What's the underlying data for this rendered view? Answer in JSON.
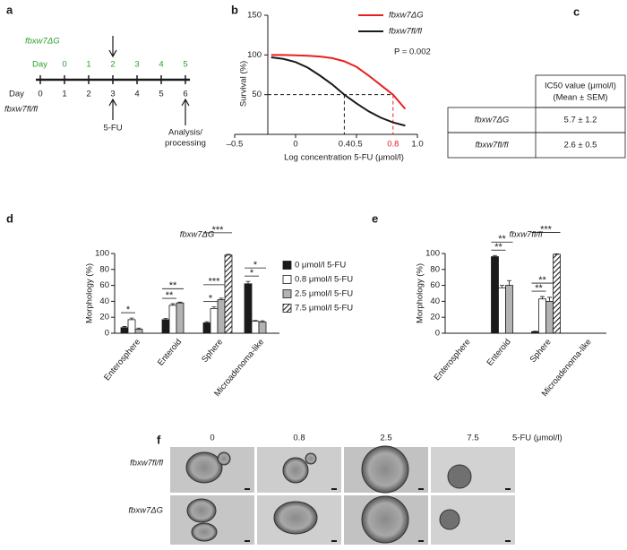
{
  "panel_labels": [
    "a",
    "b",
    "c",
    "d",
    "e",
    "f"
  ],
  "timeline": {
    "top_label": "fbxw7ΔG",
    "top_day_label": "Day",
    "top_days": [
      "0",
      "1",
      "2",
      "3",
      "4",
      "5"
    ],
    "bottom_day_label": "Day",
    "bottom_label": "fbxw7fl/fl",
    "bottom_days": [
      "0",
      "1",
      "2",
      "3",
      "4",
      "5",
      "6"
    ],
    "treatment": "5-FU",
    "endpoint": [
      "Analysis/",
      "processing"
    ]
  },
  "chart_data": [
    {
      "type": "line",
      "x_label": "Log concentration 5-FU (μmol/l)",
      "y_label": "Survival (%)",
      "annotation": "P = 0.002",
      "xlim": [
        -0.5,
        1.0
      ],
      "xticks": [
        {
          "value": -0.5,
          "label": "–0.5"
        },
        0,
        0.5,
        {
          "value": 1.0,
          "label": "1.0"
        }
      ],
      "ylim": [
        0,
        150
      ],
      "yticks": [
        50,
        100,
        150
      ],
      "legend": "top-right",
      "x": [
        -0.2,
        -0.1,
        0,
        0.1,
        0.2,
        0.3,
        0.4,
        0.5,
        0.6,
        0.7,
        0.8,
        0.9
      ],
      "series": [
        {
          "name": "fbxw7ΔG",
          "color": "#e8211f",
          "values": [
            100,
            100,
            99.5,
            99,
            98,
            96,
            92,
            85,
            74,
            62,
            50,
            32
          ]
        },
        {
          "name": "fbxw7fl/fl",
          "color": "#1a1a1a",
          "values": [
            97,
            95,
            91,
            84,
            74,
            63,
            50,
            39,
            29,
            21,
            15,
            11
          ]
        }
      ],
      "reference_lines": {
        "y": 50,
        "x": [
          {
            "value": 0.4,
            "color": "#1a1a1a"
          },
          {
            "value": 0.8,
            "color": "#e8211f"
          }
        ]
      }
    },
    {
      "type": "grouped_bar",
      "title": "fbxw7ΔG",
      "y_label": "Morphology (%)",
      "legend": "right",
      "categories": [
        "Enterosphere",
        "Enteroid",
        "Sphere",
        "Microadenoma-like"
      ],
      "ylim": [
        0,
        100
      ],
      "yticks": [
        0,
        20,
        40,
        60,
        80,
        100
      ],
      "series": [
        {
          "name": "0 μmol/l 5-FU",
          "color": "#1a1a1a",
          "values": [
            7,
            17,
            13,
            62
          ],
          "errors": [
            1.5,
            1.5,
            1.5,
            3
          ]
        },
        {
          "name": "0.8 μmol/l 5-FU",
          "color": "#ffffff",
          "values": [
            17,
            35,
            31,
            15
          ],
          "errors": [
            2,
            2,
            2,
            1
          ]
        },
        {
          "name": "2.5 μmol/l 5-FU",
          "color": "#b3b3b3",
          "values": [
            5,
            38,
            42,
            14
          ],
          "errors": [
            1.5,
            1,
            2,
            1.5
          ]
        },
        {
          "name": "7.5 μmol/l 5-FU",
          "color": "#ffffff",
          "hatch": true,
          "values": [
            0,
            0,
            98,
            0
          ],
          "errors": [
            0,
            0,
            1,
            0
          ]
        }
      ],
      "significance": [
        {
          "category": 0,
          "bars": [
            0,
            1
          ],
          "text": "*"
        },
        {
          "category": 1,
          "bars": [
            0,
            1
          ],
          "text": "**"
        },
        {
          "category": 1,
          "bars": [
            0,
            2
          ],
          "text": "**"
        },
        {
          "category": 2,
          "bars": [
            0,
            1
          ],
          "text": "*"
        },
        {
          "category": 2,
          "bars": [
            0,
            2
          ],
          "text": "***"
        },
        {
          "category": 2,
          "bars": [
            0,
            3
          ],
          "text": "***"
        },
        {
          "category": 3,
          "bars": [
            0,
            1
          ],
          "text": "*"
        },
        {
          "category": 3,
          "bars": [
            0,
            2
          ],
          "text": "*"
        }
      ]
    },
    {
      "type": "grouped_bar",
      "title": "fbxw7fl/fl",
      "y_label": "Morphology (%)",
      "categories": [
        "Enterosphere",
        "Enteroid",
        "Sphere",
        "Microadenoma-like"
      ],
      "ylim": [
        0,
        100
      ],
      "yticks": [
        0,
        20,
        40,
        60,
        80,
        100
      ],
      "series": [
        {
          "color": "#1a1a1a",
          "values": [
            0,
            96,
            2,
            0
          ],
          "errors": [
            0,
            1.5,
            0.5,
            0
          ]
        },
        {
          "color": "#ffffff",
          "values": [
            0,
            57,
            43,
            0
          ],
          "errors": [
            0,
            3,
            3,
            0
          ]
        },
        {
          "color": "#b3b3b3",
          "values": [
            0,
            60,
            40,
            0
          ],
          "errors": [
            0,
            6,
            5,
            0
          ]
        },
        {
          "color": "#ffffff",
          "hatch": true,
          "values": [
            0,
            0,
            99,
            0
          ],
          "errors": [
            0,
            0,
            0.5,
            0
          ]
        }
      ],
      "significance": [
        {
          "category": 1,
          "bars": [
            0,
            1
          ],
          "text": "**"
        },
        {
          "category": 1,
          "bars": [
            0,
            2
          ],
          "text": "**"
        },
        {
          "category": 2,
          "bars": [
            0,
            1
          ],
          "text": "**"
        },
        {
          "category": 2,
          "bars": [
            0,
            2
          ],
          "text": "**"
        },
        {
          "category": 2,
          "bars": [
            0,
            3
          ],
          "text": "***"
        }
      ]
    }
  ],
  "table": {
    "header": [
      "IC50 value (μmol/l)",
      "(Mean ± SEM)"
    ],
    "rows": [
      [
        "fbxw7ΔG",
        "5.7 ± 1.2"
      ],
      [
        "fbxw7fl/fl",
        "2.6 ± 0.5"
      ]
    ]
  },
  "micrographs": {
    "columns": [
      "0",
      "0.8",
      "2.5",
      "7.5"
    ],
    "unit": "5-FU (μmol/l)",
    "rows": [
      "fbxw7fl/fl",
      "fbxw7ΔG"
    ]
  }
}
